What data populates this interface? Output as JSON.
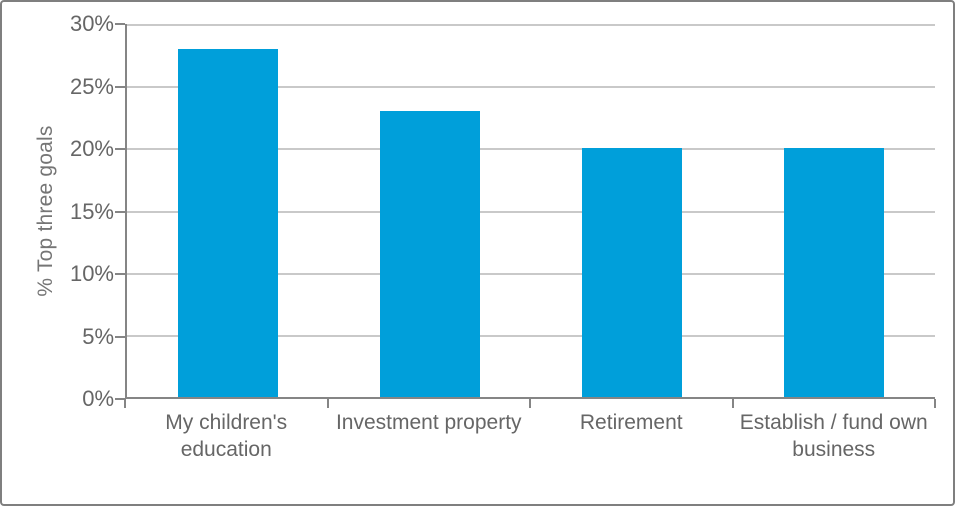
{
  "chart_data": {
    "type": "bar",
    "title": "",
    "xlabel": "",
    "ylabel": "% Top three goals",
    "categories": [
      "My children's education",
      "Investment property",
      "Retirement",
      "Establish / fund own business"
    ],
    "values": [
      28,
      23,
      20,
      20
    ],
    "unit": "%",
    "ylim": [
      0,
      30
    ],
    "ytick_step": 5,
    "ytick_labels": [
      "0%",
      "5%",
      "10%",
      "15%",
      "20%",
      "25%",
      "30%"
    ],
    "grid": "horizontal",
    "legend": "none",
    "colors": {
      "bar": "#009FDA",
      "gridline": "#c9c9c9",
      "axis": "#858585",
      "tick_text": "#666666",
      "title_text": "#757575",
      "frame_border": "#7f7f7f",
      "background": "#ffffff"
    }
  }
}
